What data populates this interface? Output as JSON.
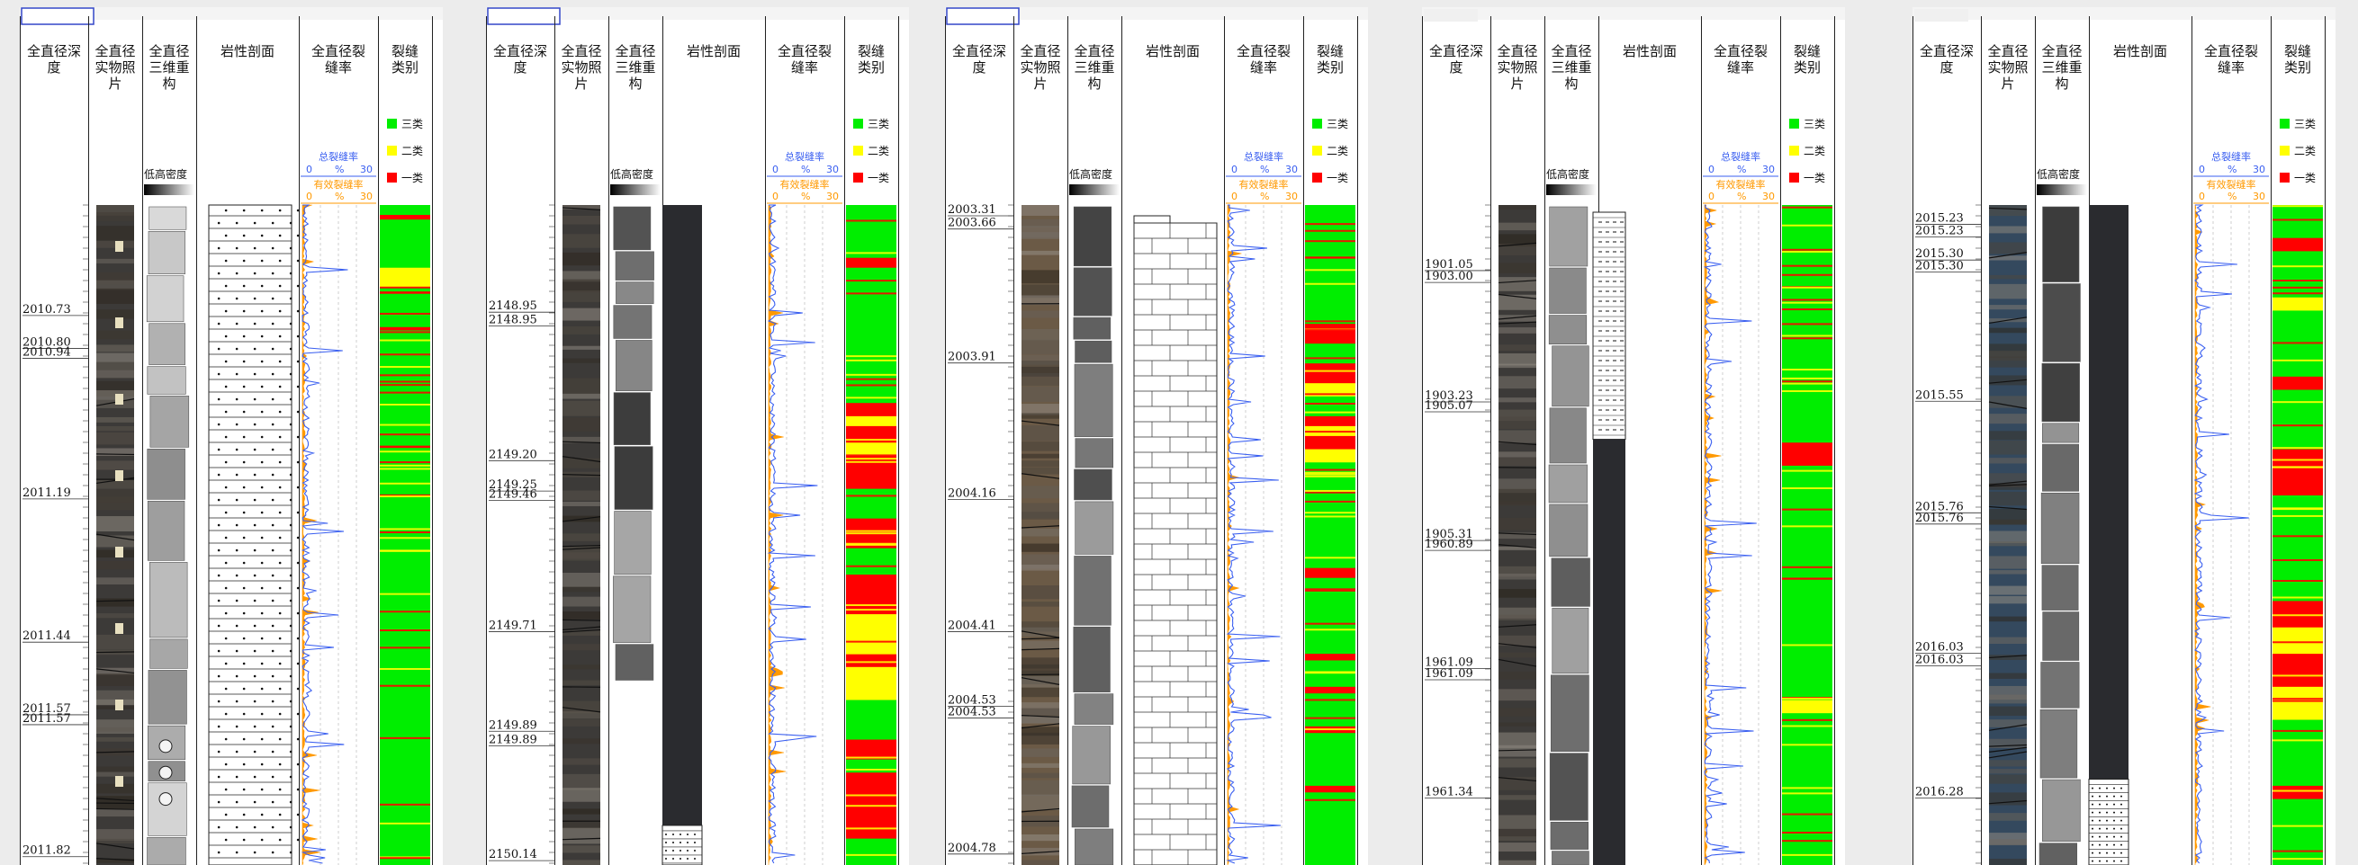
{
  "headers": {
    "depth": "全直径深度",
    "photo": "全直径实物照片",
    "recon": "全直径三维重构",
    "litho": "岩性剖面",
    "rate": "全直径裂缝率",
    "class": "裂缝类别"
  },
  "legend": {
    "class3": "三类",
    "class2": "二类",
    "class1": "一类",
    "density": "低高密度",
    "total_rate": "总裂缝率",
    "effective_rate": "有效裂缝率",
    "scale_min": "0",
    "scale_unit": "%",
    "scale_max": "30"
  },
  "colors": {
    "class3": "#00ee00",
    "class2": "#ffff00",
    "class1": "#ff0000",
    "total_curve": "#3a5ff0",
    "effective_fill": "#ff9900"
  },
  "panels": [
    {
      "id": "p1",
      "has_title_box": true,
      "litho_style": "sand",
      "depth_labels": [
        "2010.73",
        "2010.80",
        "2010.94",
        "2011.19",
        "2011.44",
        "2011.57",
        "2011.57",
        "2011.82"
      ],
      "depth_positions": [
        0.166,
        0.216,
        0.231,
        0.444,
        0.661,
        0.771,
        0.786,
        0.986
      ],
      "class_bands": [
        {
          "from": 0.0,
          "to": 0.015,
          "cls": 3
        },
        {
          "from": 0.015,
          "to": 0.022,
          "cls": 1
        },
        {
          "from": 0.022,
          "to": 0.095,
          "cls": 3
        },
        {
          "from": 0.095,
          "to": 0.125,
          "cls": 2
        },
        {
          "from": 0.125,
          "to": 0.185,
          "cls": 3
        },
        {
          "from": 0.185,
          "to": 0.19,
          "cls": 1
        },
        {
          "from": 0.19,
          "to": 1.0,
          "cls": 3
        }
      ]
    },
    {
      "id": "p2",
      "has_title_box": true,
      "litho_style": "dark",
      "depth_labels": [
        "2148.95",
        "2148.95",
        "2149.20",
        "2149.25",
        "2149.46",
        "2149.71",
        "2149.89",
        "2149.89",
        "2150.14"
      ],
      "depth_positions": [
        0.161,
        0.182,
        0.386,
        0.432,
        0.446,
        0.645,
        0.796,
        0.818,
        0.992
      ],
      "class_bands": [
        {
          "from": 0.0,
          "to": 0.08,
          "cls": 3
        },
        {
          "from": 0.08,
          "to": 0.095,
          "cls": 1
        },
        {
          "from": 0.095,
          "to": 0.3,
          "cls": 3
        },
        {
          "from": 0.3,
          "to": 0.32,
          "cls": 1
        },
        {
          "from": 0.32,
          "to": 0.335,
          "cls": 2
        },
        {
          "from": 0.335,
          "to": 0.36,
          "cls": 1
        },
        {
          "from": 0.36,
          "to": 0.38,
          "cls": 2
        },
        {
          "from": 0.38,
          "to": 0.43,
          "cls": 1
        },
        {
          "from": 0.43,
          "to": 0.475,
          "cls": 3
        },
        {
          "from": 0.475,
          "to": 0.52,
          "cls": 1
        },
        {
          "from": 0.52,
          "to": 0.56,
          "cls": 3
        },
        {
          "from": 0.56,
          "to": 0.62,
          "cls": 1
        },
        {
          "from": 0.62,
          "to": 0.68,
          "cls": 2
        },
        {
          "from": 0.68,
          "to": 0.7,
          "cls": 1
        },
        {
          "from": 0.7,
          "to": 0.75,
          "cls": 2
        },
        {
          "from": 0.75,
          "to": 0.81,
          "cls": 3
        },
        {
          "from": 0.81,
          "to": 0.84,
          "cls": 1
        },
        {
          "from": 0.84,
          "to": 0.86,
          "cls": 3
        },
        {
          "from": 0.86,
          "to": 0.96,
          "cls": 1
        },
        {
          "from": 0.96,
          "to": 1.0,
          "cls": 3
        }
      ]
    },
    {
      "id": "p3",
      "has_title_box": true,
      "litho_style": "limestone",
      "depth_labels": [
        "2003.31",
        "2003.66",
        "2003.91",
        "2004.16",
        "2004.41",
        "2004.53",
        "2004.53",
        "2004.78"
      ],
      "depth_positions": [
        0.015,
        0.035,
        0.238,
        0.445,
        0.645,
        0.758,
        0.776,
        0.982
      ],
      "class_bands": [
        {
          "from": 0.0,
          "to": 0.18,
          "cls": 3
        },
        {
          "from": 0.18,
          "to": 0.21,
          "cls": 1
        },
        {
          "from": 0.21,
          "to": 0.24,
          "cls": 3
        },
        {
          "from": 0.24,
          "to": 0.27,
          "cls": 1
        },
        {
          "from": 0.27,
          "to": 0.29,
          "cls": 2
        },
        {
          "from": 0.29,
          "to": 0.32,
          "cls": 3
        },
        {
          "from": 0.32,
          "to": 0.335,
          "cls": 1
        },
        {
          "from": 0.335,
          "to": 0.35,
          "cls": 2
        },
        {
          "from": 0.35,
          "to": 0.37,
          "cls": 1
        },
        {
          "from": 0.37,
          "to": 0.39,
          "cls": 2
        },
        {
          "from": 0.39,
          "to": 0.55,
          "cls": 3
        },
        {
          "from": 0.55,
          "to": 0.565,
          "cls": 1
        },
        {
          "from": 0.565,
          "to": 0.68,
          "cls": 3
        },
        {
          "from": 0.68,
          "to": 0.69,
          "cls": 1
        },
        {
          "from": 0.69,
          "to": 0.73,
          "cls": 3
        },
        {
          "from": 0.73,
          "to": 0.74,
          "cls": 1
        },
        {
          "from": 0.74,
          "to": 0.79,
          "cls": 3
        },
        {
          "from": 0.79,
          "to": 0.8,
          "cls": 1
        },
        {
          "from": 0.8,
          "to": 0.88,
          "cls": 3
        },
        {
          "from": 0.88,
          "to": 0.89,
          "cls": 1
        },
        {
          "from": 0.89,
          "to": 1.0,
          "cls": 3
        }
      ]
    },
    {
      "id": "p4",
      "has_title_box": false,
      "litho_style": "shale",
      "depth_labels": [
        "1901.05",
        "1903.00",
        "1903.23",
        "1905.07",
        "1905.31",
        "1960.89",
        "1961.09",
        "1961.09",
        "1961.34"
      ],
      "depth_positions": [
        0.098,
        0.116,
        0.297,
        0.312,
        0.507,
        0.522,
        0.701,
        0.718,
        0.897
      ],
      "class_bands": [
        {
          "from": 0.0,
          "to": 0.36,
          "cls": 3
        },
        {
          "from": 0.36,
          "to": 0.395,
          "cls": 1
        },
        {
          "from": 0.395,
          "to": 0.75,
          "cls": 3
        },
        {
          "from": 0.75,
          "to": 0.77,
          "cls": 2
        },
        {
          "from": 0.77,
          "to": 1.0,
          "cls": 3
        }
      ]
    },
    {
      "id": "p5",
      "has_title_box": false,
      "litho_style": "dark",
      "depth_labels": [
        "2015.23",
        "2015.23",
        "2015.30",
        "2015.30",
        "2015.55",
        "2015.76",
        "2015.76",
        "2016.03",
        "2016.03",
        "2016.28"
      ],
      "depth_positions": [
        0.028,
        0.047,
        0.082,
        0.1,
        0.296,
        0.465,
        0.482,
        0.678,
        0.697,
        0.897
      ],
      "class_bands": [
        {
          "from": 0.0,
          "to": 0.05,
          "cls": 3
        },
        {
          "from": 0.05,
          "to": 0.07,
          "cls": 1
        },
        {
          "from": 0.07,
          "to": 0.14,
          "cls": 3
        },
        {
          "from": 0.14,
          "to": 0.16,
          "cls": 2
        },
        {
          "from": 0.16,
          "to": 0.26,
          "cls": 3
        },
        {
          "from": 0.26,
          "to": 0.28,
          "cls": 1
        },
        {
          "from": 0.28,
          "to": 0.37,
          "cls": 3
        },
        {
          "from": 0.37,
          "to": 0.44,
          "cls": 1
        },
        {
          "from": 0.44,
          "to": 0.6,
          "cls": 3
        },
        {
          "from": 0.6,
          "to": 0.64,
          "cls": 1
        },
        {
          "from": 0.64,
          "to": 0.68,
          "cls": 2
        },
        {
          "from": 0.68,
          "to": 0.73,
          "cls": 1
        },
        {
          "from": 0.73,
          "to": 0.78,
          "cls": 2
        },
        {
          "from": 0.78,
          "to": 0.88,
          "cls": 3
        },
        {
          "from": 0.88,
          "to": 0.9,
          "cls": 1
        },
        {
          "from": 0.9,
          "to": 1.0,
          "cls": 3
        }
      ]
    }
  ]
}
